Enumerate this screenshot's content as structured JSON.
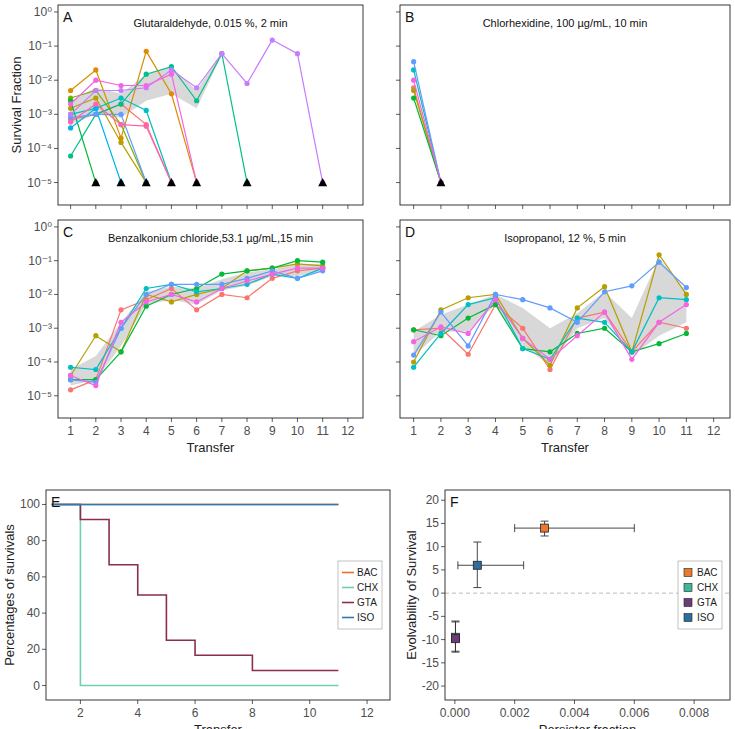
{
  "chart_data": [
    {
      "type": "line",
      "title": "Glutaraldehyde, 0.015 %, 2 min",
      "annotations": [
        "A"
      ],
      "y_label": "Survival Fraction",
      "log": "y",
      "tick_labels": "y",
      "x": [
        1,
        2,
        3,
        4,
        5,
        6,
        7,
        8,
        9,
        10,
        11
      ],
      "xlim": [
        0.5,
        12.6
      ],
      "xticks": [
        1,
        2,
        3,
        4,
        5,
        6,
        7,
        8,
        9,
        10,
        11,
        12
      ],
      "ylim": [
        2.2e-06,
        1.6
      ],
      "yticks": [
        {
          "value": 1,
          "label": "10⁰"
        },
        {
          "value": 0.1,
          "label": "10⁻¹"
        },
        {
          "value": 0.01,
          "label": "10⁻²"
        },
        {
          "value": 0.001,
          "label": "10⁻³"
        },
        {
          "value": 0.0001,
          "label": "10⁻⁴"
        },
        {
          "value": 1e-05,
          "label": "10⁻⁵"
        }
      ],
      "ribbon": {
        "lower": [
          0.0005,
          0.001,
          0.0008,
          0.0025,
          0.004,
          0.0015,
          0.055,
          null,
          null,
          null,
          null
        ],
        "upper": [
          0.0025,
          0.006,
          0.004,
          0.015,
          0.025,
          0.005,
          0.065,
          null,
          null,
          null,
          null
        ]
      },
      "series": [
        {
          "color": "#F8766D",
          "marker": "circle",
          "values": [
            0.0007,
            0.001,
            0.002,
            0.0005,
            1e-05,
            null,
            null,
            null,
            null,
            null,
            null
          ]
        },
        {
          "color": "#DE8C00",
          "marker": "circle",
          "values": [
            0.005,
            0.02,
            0.0002,
            0.07,
            0.004,
            1e-05,
            null,
            null,
            null,
            null,
            null
          ]
        },
        {
          "color": "#B79F00",
          "marker": "circle",
          "values": [
            0.0015,
            0.003,
            0.00015,
            1e-05,
            null,
            null,
            null,
            null,
            null,
            null,
            null
          ]
        },
        {
          "color": "#7CAE00",
          "marker": "circle",
          "values": [
            0.003,
            0.005,
            0.0005,
            1e-05,
            null,
            null,
            null,
            null,
            null,
            null,
            null
          ]
        },
        {
          "color": "#00BA38",
          "marker": "circle",
          "values": [
            0.0025,
            1e-05,
            null,
            null,
            null,
            null,
            null,
            null,
            null,
            null,
            null
          ]
        },
        {
          "color": "#00C08B",
          "marker": "circle",
          "values": [
            6e-05,
            0.001,
            0.002,
            0.015,
            0.025,
            0.0025,
            0.06,
            1e-05,
            null,
            null,
            null
          ]
        },
        {
          "color": "#00BFC4",
          "marker": "circle",
          "values": [
            0.001,
            0.0015,
            0.003,
            0.0013,
            1e-05,
            null,
            null,
            null,
            null,
            null,
            null
          ]
        },
        {
          "color": "#00B4F0",
          "marker": "circle",
          "values": [
            0.0004,
            0.0015,
            1e-05,
            null,
            null,
            null,
            null,
            null,
            null,
            null,
            null
          ]
        },
        {
          "color": "#619CFF",
          "marker": "circle",
          "values": [
            0.0008,
            0.001,
            0.001,
            1e-05,
            null,
            null,
            null,
            null,
            null,
            null,
            null
          ]
        },
        {
          "color": "#C77CFF",
          "marker": "circle",
          "values": [
            0.001,
            0.005,
            0.005,
            0.006,
            0.02,
            0.006,
            0.06,
            0.008,
            0.15,
            0.06,
            1e-05
          ]
        },
        {
          "color": "#F564E3",
          "marker": "circle",
          "values": [
            0.002,
            0.01,
            0.007,
            0.007,
            0.015,
            1e-05,
            null,
            null,
            null,
            null,
            null
          ]
        },
        {
          "color": "#FF64B0",
          "marker": "circle",
          "values": [
            0.0006,
            0.002,
            0.0005,
            0.00045,
            1e-05,
            null,
            null,
            null,
            null,
            null,
            null
          ]
        },
        {
          "color": "#000000",
          "marker": "triangle",
          "line_style": "none",
          "values": [
            null,
            1e-05,
            1e-05,
            1e-05,
            1e-05,
            1e-05,
            null,
            1e-05,
            null,
            null,
            1e-05
          ]
        }
      ]
    },
    {
      "type": "line",
      "title": "Chlorhexidine, 100 µg/mL, 10 min",
      "annotations": [
        "B"
      ],
      "log": "y",
      "tick_labels": false,
      "x": [
        1,
        2,
        3,
        4,
        5,
        6,
        7,
        8,
        9,
        10,
        11
      ],
      "xlim": [
        0.5,
        12.6
      ],
      "xticks": [
        1,
        2,
        3,
        4,
        5,
        6,
        7,
        8,
        9,
        10,
        11,
        12
      ],
      "ylim": [
        2.2e-06,
        1.6
      ],
      "yticks": [
        1,
        0.1,
        0.01,
        0.001,
        0.0001,
        1e-05
      ],
      "series": [
        {
          "color": "#F8766D",
          "marker": "circle",
          "values": [
            0.006,
            1e-05,
            null,
            null,
            null,
            null,
            null,
            null,
            null,
            null,
            null
          ]
        },
        {
          "color": "#B79F00",
          "marker": "circle",
          "values": [
            0.005,
            1e-05,
            null,
            null,
            null,
            null,
            null,
            null,
            null,
            null,
            null
          ]
        },
        {
          "color": "#00BA38",
          "marker": "circle",
          "values": [
            0.003,
            1e-05,
            null,
            null,
            null,
            null,
            null,
            null,
            null,
            null,
            null
          ]
        },
        {
          "color": "#00BFC4",
          "marker": "circle",
          "values": [
            0.02,
            1e-05,
            null,
            null,
            null,
            null,
            null,
            null,
            null,
            null,
            null
          ]
        },
        {
          "color": "#619CFF",
          "marker": "circle",
          "values": [
            0.035,
            1e-05,
            null,
            null,
            null,
            null,
            null,
            null,
            null,
            null,
            null
          ]
        },
        {
          "color": "#F564E3",
          "marker": "circle",
          "values": [
            0.01,
            1e-05,
            null,
            null,
            null,
            null,
            null,
            null,
            null,
            null,
            null
          ]
        },
        {
          "color": "#000000",
          "marker": "triangle",
          "line_style": "none",
          "values": [
            null,
            1e-05,
            null,
            null,
            null,
            null,
            null,
            null,
            null,
            null,
            null
          ]
        }
      ]
    },
    {
      "type": "line",
      "title": "Benzalkonium chloride,53.1 µg/mL,15 min",
      "annotations": [
        "C"
      ],
      "x_label": "Transfer",
      "log": "y",
      "x": [
        1,
        2,
        3,
        4,
        5,
        6,
        7,
        8,
        9,
        10,
        11
      ],
      "xlim": [
        0.5,
        12.6
      ],
      "xticks": [
        1,
        2,
        3,
        4,
        5,
        6,
        7,
        8,
        9,
        10,
        11,
        12
      ],
      "ylim": [
        2.2e-06,
        1.6
      ],
      "yticks": [
        {
          "value": 1,
          "label": "10⁰"
        },
        {
          "value": 0.1,
          "label": "10⁻¹"
        },
        {
          "value": 0.01,
          "label": "10⁻²"
        },
        {
          "value": 0.001,
          "label": "10⁻³"
        },
        {
          "value": 0.0001,
          "label": "10⁻⁴"
        },
        {
          "value": 1e-05,
          "label": "10⁻⁵"
        }
      ],
      "ribbon": {
        "lower": [
          2e-05,
          3e-05,
          0.0003,
          0.005,
          0.007,
          0.005,
          0.013,
          0.018,
          0.035,
          0.035,
          0.05
        ],
        "upper": [
          6e-05,
          0.00015,
          0.0015,
          0.012,
          0.017,
          0.015,
          0.028,
          0.045,
          0.055,
          0.08,
          0.08
        ]
      },
      "series": [
        {
          "color": "#F8766D",
          "marker": "circle",
          "values": [
            1.5e-05,
            3e-05,
            0.0035,
            0.007,
            0.015,
            0.0035,
            0.01,
            0.008,
            0.03,
            0.05,
            0.06
          ]
        },
        {
          "color": "#B79F00",
          "marker": "circle",
          "values": [
            4e-05,
            0.0006,
            0.0002,
            0.01,
            0.006,
            0.01,
            0.015,
            0.05,
            0.06,
            0.08,
            0.07
          ]
        },
        {
          "color": "#00BA38",
          "marker": "circle",
          "values": [
            3e-05,
            3e-05,
            0.0002,
            0.0045,
            0.01,
            0.015,
            0.04,
            0.05,
            0.06,
            0.1,
            0.09
          ]
        },
        {
          "color": "#00BFC4",
          "marker": "circle",
          "values": [
            7e-05,
            6e-05,
            0.001,
            0.015,
            0.02,
            0.012,
            0.015,
            0.02,
            0.04,
            0.03,
            0.06
          ]
        },
        {
          "color": "#619CFF",
          "marker": "circle",
          "values": [
            3e-05,
            2.5e-05,
            0.001,
            0.01,
            0.02,
            0.02,
            0.02,
            0.03,
            0.05,
            0.03,
            0.05
          ]
        },
        {
          "color": "#F564E3",
          "marker": "circle",
          "values": [
            4e-05,
            2e-05,
            0.0015,
            0.006,
            0.01,
            0.006,
            0.015,
            0.025,
            0.04,
            0.06,
            0.06
          ]
        }
      ]
    },
    {
      "type": "line",
      "title": "Isopropanol, 12 %, 5 min",
      "annotations": [
        "D"
      ],
      "x_label": "Transfer",
      "log": "y",
      "tick_labels": "x",
      "x": [
        1,
        2,
        3,
        4,
        5,
        6,
        7,
        8,
        9,
        10,
        11
      ],
      "xlim": [
        0.5,
        12.6
      ],
      "xticks": [
        1,
        2,
        3,
        4,
        5,
        6,
        7,
        8,
        9,
        10,
        11,
        12
      ],
      "ylim": [
        2.2e-06,
        1.6
      ],
      "yticks": [
        1,
        0.1,
        0.01,
        0.001,
        0.0001,
        1e-05
      ],
      "ribbon": {
        "lower": [
          0.00015,
          0.0008,
          0.0008,
          0.005,
          0.0003,
          8e-05,
          0.001,
          0.002,
          0.00015,
          0.0006,
          0.0015
        ],
        "upper": [
          0.0008,
          0.0025,
          0.005,
          0.01,
          0.004,
          0.001,
          0.0028,
          0.012,
          0.002,
          0.12,
          0.012
        ]
      },
      "series": [
        {
          "color": "#F8766D",
          "marker": "circle",
          "values": [
            0.0009,
            0.001,
            0.00017,
            0.005,
            0.001,
            6e-05,
            0.002,
            0.003,
            0.0002,
            0.0015,
            0.001
          ]
        },
        {
          "color": "#B79F00",
          "marker": "circle",
          "values": [
            0.0001,
            0.0035,
            0.008,
            0.01,
            0.0005,
            8e-05,
            0.004,
            0.017,
            0.0002,
            0.15,
            0.01
          ]
        },
        {
          "color": "#00BA38",
          "marker": "circle",
          "values": [
            0.0009,
            0.0006,
            0.002,
            0.005,
            0.00025,
            0.0002,
            0.0007,
            0.001,
            0.0002,
            0.00035,
            0.0007
          ]
        },
        {
          "color": "#00BFC4",
          "marker": "circle",
          "values": [
            7e-05,
            0.0007,
            0.005,
            0.008,
            0.00025,
            0.00012,
            0.002,
            0.0015,
            0.0002,
            0.008,
            0.007
          ]
        },
        {
          "color": "#619CFF",
          "marker": "circle",
          "values": [
            0.00016,
            0.003,
            0.0003,
            0.01,
            0.007,
            0.004,
            0.0015,
            0.012,
            0.018,
            0.09,
            0.016
          ]
        },
        {
          "color": "#F564E3",
          "marker": "circle",
          "values": [
            0.0004,
            0.0011,
            0.0007,
            0.007,
            0.0005,
            0.00012,
            0.0006,
            0.003,
            0.00012,
            0.0015,
            0.005
          ]
        }
      ]
    },
    {
      "type": "line",
      "annotations": [
        "E"
      ],
      "x_label": "Transfer",
      "y_label": "Percentages of survivals",
      "legend": "right",
      "x": [
        1,
        2,
        3,
        4,
        5,
        6,
        7,
        8,
        9,
        10,
        11
      ],
      "xlim": [
        0.8,
        12.8
      ],
      "xticks": [
        2,
        4,
        6,
        8,
        10,
        12
      ],
      "ylim": [
        -8,
        108
      ],
      "yticks": [
        0,
        20,
        40,
        60,
        80,
        100
      ],
      "series": [
        {
          "name": "BAC",
          "color": "#E8702A",
          "line_style": "step",
          "values": [
            100,
            100,
            100,
            100,
            100,
            100,
            100,
            100,
            100,
            100,
            100
          ]
        },
        {
          "name": "CHX",
          "color": "#6FCFB5",
          "line_style": "step",
          "values": [
            100,
            0,
            0,
            0,
            0,
            0,
            0,
            0,
            0,
            0,
            0
          ]
        },
        {
          "name": "GTA",
          "color": "#8B2D4F",
          "line_style": "step",
          "values": [
            100,
            91.7,
            66.7,
            50,
            25,
            16.7,
            16.7,
            8.3,
            8.3,
            8.3,
            8.3
          ]
        },
        {
          "name": "ISO",
          "color": "#2C7BB6",
          "line_style": "step",
          "values": [
            100,
            100,
            100,
            100,
            100,
            100,
            100,
            100,
            100,
            100,
            100
          ]
        }
      ]
    },
    {
      "type": "scatter",
      "annotations": [
        "F"
      ],
      "x_label": "Persister fraction",
      "y_label": "Evolvability of Survival",
      "legend": "right",
      "xlim": [
        -0.00033,
        0.0092
      ],
      "xticks": [
        {
          "value": 0,
          "label": "0.000"
        },
        {
          "value": 0.002,
          "label": "0.002"
        },
        {
          "value": 0.004,
          "label": "0.004"
        },
        {
          "value": 0.006,
          "label": "0.006"
        },
        {
          "value": 0.008,
          "label": "0.008"
        }
      ],
      "ylim": [
        -23,
        22.2
      ],
      "yticks": [
        -20,
        -15,
        -10,
        -5,
        0,
        5,
        10,
        15,
        20
      ],
      "reference_y": 0,
      "series": [
        {
          "name": "BAC",
          "color": "#E8792E",
          "marker": "square",
          "line_style": "none",
          "x": [
            0.003
          ],
          "values": [
            14
          ],
          "x_low": [
            0.002
          ],
          "x_high": [
            0.006
          ],
          "y_low": [
            12.3
          ],
          "y_high": [
            15.5
          ]
        },
        {
          "name": "CHX",
          "color": "#3DB89A",
          "marker": "square",
          "line_style": "none",
          "x": [
            2e-05
          ],
          "values": [
            -9.5
          ],
          "x_low": [
            0
          ],
          "x_high": [
            4e-05
          ],
          "y_low": [
            -12.5
          ],
          "y_high": [
            -6
          ]
        },
        {
          "name": "GTA",
          "color": "#6E3B7A",
          "marker": "square",
          "line_style": "none",
          "x": [
            2e-05
          ],
          "values": [
            -9.8
          ],
          "x_low": [
            0
          ],
          "x_high": [
            5e-05
          ],
          "y_low": [
            -12.7
          ],
          "y_high": [
            -6.2
          ]
        },
        {
          "name": "ISO",
          "color": "#2D6E9E",
          "marker": "square",
          "line_style": "none",
          "x": [
            0.00075
          ],
          "values": [
            6
          ],
          "x_low": [
            0.0001
          ],
          "x_high": [
            0.0023
          ],
          "y_low": [
            1.2
          ],
          "y_high": [
            11
          ]
        }
      ]
    }
  ]
}
